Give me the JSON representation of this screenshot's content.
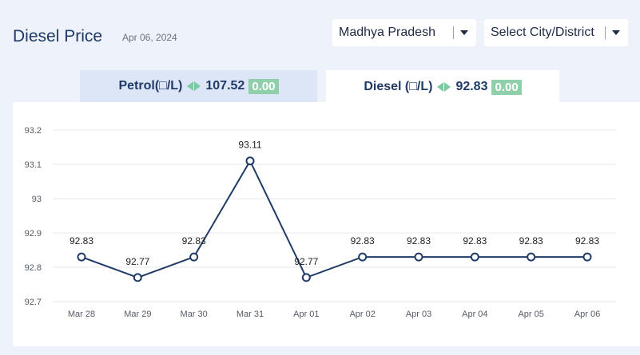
{
  "header": {
    "title": "Diesel Price",
    "date": "Apr 06, 2024"
  },
  "filters": {
    "state": "Madhya Pradesh",
    "city": "Select City/District"
  },
  "tabs": {
    "petrol": {
      "label": "Petrol(□/L)",
      "price": "107.52",
      "change": "0.00"
    },
    "diesel": {
      "label": "Diesel (□/L)",
      "price": "92.83",
      "change": "0.00"
    }
  },
  "colors": {
    "line": "#1f3a66",
    "change_badge": "#8fcfa9",
    "arrow": "#7fc9a2"
  },
  "chart_data": {
    "type": "line",
    "categories": [
      "Mar 28",
      "Mar 29",
      "Mar 30",
      "Mar 31",
      "Apr 01",
      "Apr 02",
      "Apr 03",
      "Apr 04",
      "Apr 05",
      "Apr 06"
    ],
    "values": [
      92.83,
      92.77,
      92.83,
      93.11,
      92.77,
      92.83,
      92.83,
      92.83,
      92.83,
      92.83
    ],
    "data_labels": [
      "92.83",
      "92.77",
      "92.83",
      "93.11",
      "92.77",
      "92.83",
      "92.83",
      "92.83",
      "92.83",
      "92.83"
    ],
    "y_ticks": [
      "93.2",
      "93.1",
      "93",
      "92.9",
      "92.8",
      "92.7"
    ],
    "ylim": [
      92.7,
      93.2
    ],
    "grid": true,
    "title": "",
    "xlabel": "",
    "ylabel": ""
  }
}
